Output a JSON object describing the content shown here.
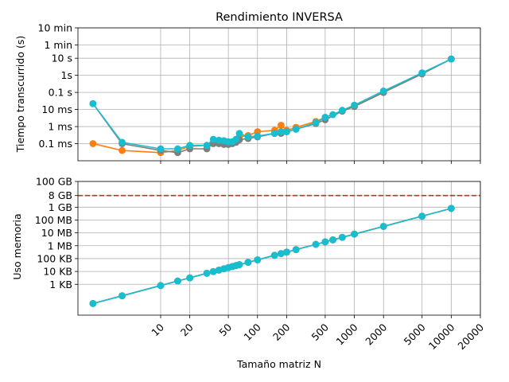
{
  "figure": {
    "title": "Rendimiento INVERSA",
    "xlabel": "Tamaño matriz N"
  },
  "colors": {
    "orange": "#ff7f0e",
    "gray": "#7f7f7f",
    "cyan": "#17becf",
    "limit_line": "#d62728",
    "grid": "#b0b0b0"
  },
  "chart_data": [
    {
      "type": "line",
      "title": "Rendimiento INVERSA",
      "xlabel": "",
      "ylabel": "Tiempo transcurrido (s)",
      "xscale": "log",
      "yscale": "log",
      "xlim": [
        1.4,
        20000
      ],
      "ylim": [
        1e-05,
        600
      ],
      "grid": true,
      "yticks": [
        {
          "value": 0.0001,
          "label": "0.1 ms"
        },
        {
          "value": 0.001,
          "label": "1 ms"
        },
        {
          "value": 0.01,
          "label": "10 ms"
        },
        {
          "value": 0.1,
          "label": "0.1 s"
        },
        {
          "value": 1,
          "label": "1s"
        },
        {
          "value": 10,
          "label": "10 s"
        },
        {
          "value": 60,
          "label": "1 min"
        },
        {
          "value": 600,
          "label": "10 min"
        }
      ],
      "series": [
        {
          "color": "#ff7f0e",
          "x": [
            2,
            4,
            10,
            15,
            20,
            30,
            35,
            40,
            45,
            50,
            55,
            60,
            65,
            80,
            100,
            150,
            175,
            200,
            250,
            400,
            500,
            750,
            1000,
            2000,
            5000,
            10000
          ],
          "y": [
            0.0001,
            4e-05,
            3e-05,
            4e-05,
            7e-05,
            8e-05,
            0.00012,
            0.00012,
            0.0001,
            0.00011,
            0.00012,
            0.00014,
            0.00025,
            0.0003,
            0.0005,
            0.0006,
            0.0012,
            0.0006,
            0.0009,
            0.002,
            0.0035,
            0.008,
            0.015,
            0.1,
            1.3,
            9
          ]
        },
        {
          "color": "#7f7f7f",
          "x": [
            2,
            4,
            10,
            15,
            20,
            30,
            35,
            40,
            45,
            50,
            55,
            60,
            65,
            80,
            100,
            150,
            175,
            200,
            250,
            400,
            500,
            750,
            1000,
            2000,
            5000,
            10000
          ],
          "y": [
            0.022,
            0.0001,
            4e-05,
            3e-05,
            5e-05,
            5e-05,
            0.0001,
            0.0001,
            9e-05,
            9e-05,
            0.0001,
            0.00012,
            0.00017,
            0.0002,
            0.00025,
            0.0004,
            0.0004,
            0.0005,
            0.0007,
            0.0015,
            0.0025,
            0.008,
            0.015,
            0.1,
            1.2,
            9
          ]
        },
        {
          "color": "#17becf",
          "x": [
            2,
            4,
            10,
            15,
            20,
            30,
            35,
            40,
            45,
            50,
            55,
            60,
            65,
            80,
            100,
            150,
            175,
            200,
            250,
            400,
            500,
            600,
            750,
            1000,
            2000,
            5000,
            10000
          ],
          "y": [
            0.022,
            0.00012,
            5e-05,
            5e-05,
            8e-05,
            8e-05,
            0.00018,
            0.00016,
            0.00015,
            0.00013,
            0.00013,
            0.00018,
            0.0004,
            0.00025,
            0.00028,
            0.0004,
            0.0005,
            0.0005,
            0.0007,
            0.0017,
            0.0035,
            0.005,
            0.009,
            0.018,
            0.12,
            1.4,
            9
          ]
        }
      ]
    },
    {
      "type": "line",
      "title": "",
      "xlabel": "Tamaño matriz N",
      "ylabel": "Uso memoria",
      "xscale": "log",
      "yscale": "log",
      "xlim": [
        1.4,
        20000
      ],
      "ylim": [
        4,
        100000000000.0
      ],
      "grid": true,
      "xticks": [
        {
          "value": 10,
          "label": "10"
        },
        {
          "value": 20,
          "label": "20"
        },
        {
          "value": 50,
          "label": "50"
        },
        {
          "value": 100,
          "label": "100"
        },
        {
          "value": 200,
          "label": "200"
        },
        {
          "value": 500,
          "label": "500"
        },
        {
          "value": 1000,
          "label": "1000"
        },
        {
          "value": 2000,
          "label": "2000"
        },
        {
          "value": 5000,
          "label": "5000"
        },
        {
          "value": 10000,
          "label": "10000"
        },
        {
          "value": 20000,
          "label": "20000"
        }
      ],
      "yticks": [
        {
          "value": 1000.0,
          "label": "1 KB"
        },
        {
          "value": 10000.0,
          "label": "10 KB"
        },
        {
          "value": 100000.0,
          "label": "100 KB"
        },
        {
          "value": 1000000.0,
          "label": "1 MB"
        },
        {
          "value": 10000000.0,
          "label": "10 MB"
        },
        {
          "value": 100000000.0,
          "label": "100 MB"
        },
        {
          "value": 1000000000.0,
          "label": "1 GB"
        },
        {
          "value": 8000000000.0,
          "label": "8 GB"
        },
        {
          "value": 100000000000.0,
          "label": "100 GB"
        }
      ],
      "hline": {
        "value": 8000000000.0,
        "color": "#d62728",
        "style": "dashed"
      },
      "series": [
        {
          "color": "#ff7f0e",
          "x": [
            2,
            4,
            10,
            15,
            20,
            30,
            35,
            40,
            45,
            50,
            55,
            60,
            65,
            80,
            100,
            150,
            175,
            200,
            250,
            400,
            500,
            600,
            750,
            1000,
            2000,
            5000,
            10000
          ],
          "y": [
            32,
            128,
            800,
            1800,
            3200,
            7200,
            9800,
            12800,
            16200,
            20000,
            24200,
            28800,
            33800,
            51200,
            80000,
            180000,
            245000,
            320000,
            500000,
            1280000,
            2000000,
            2880000,
            4500000,
            8000000,
            32000000,
            200000000,
            800000000
          ]
        },
        {
          "color": "#7f7f7f",
          "x": [
            2,
            4,
            10,
            15,
            20,
            30,
            35,
            40,
            45,
            50,
            55,
            60,
            65,
            80,
            100,
            150,
            175,
            200,
            250,
            400,
            500,
            600,
            750,
            1000,
            2000,
            5000,
            10000
          ],
          "y": [
            32,
            128,
            800,
            1800,
            3200,
            7200,
            9800,
            12800,
            16200,
            20000,
            24200,
            28800,
            33800,
            51200,
            80000,
            180000,
            245000,
            320000,
            500000,
            1280000,
            2000000,
            2880000,
            4500000,
            8000000,
            32000000,
            200000000,
            800000000
          ]
        },
        {
          "color": "#17becf",
          "x": [
            2,
            4,
            10,
            15,
            20,
            30,
            35,
            40,
            45,
            50,
            55,
            60,
            65,
            80,
            100,
            150,
            175,
            200,
            250,
            400,
            500,
            600,
            750,
            1000,
            2000,
            5000,
            10000
          ],
          "y": [
            32,
            128,
            800,
            1800,
            3200,
            7200,
            9800,
            12800,
            16200,
            20000,
            24200,
            28800,
            33800,
            51200,
            80000,
            180000,
            245000,
            320000,
            500000,
            1280000,
            2000000,
            2880000,
            4500000,
            8000000,
            32000000,
            200000000,
            800000000
          ]
        }
      ]
    }
  ]
}
